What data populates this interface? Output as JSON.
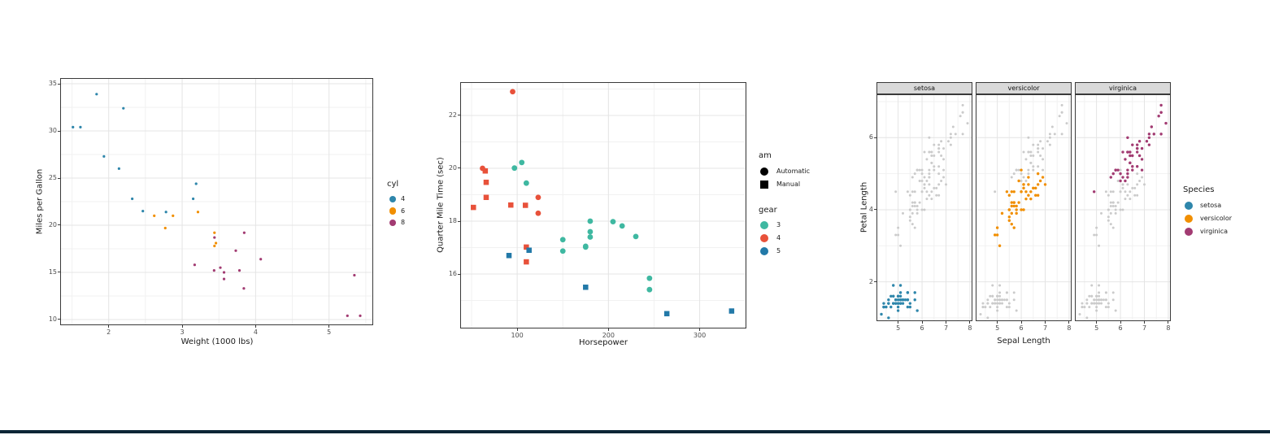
{
  "page": {
    "background": "#FFFFFF",
    "bottom_bar_color": "#0C2636"
  },
  "chart_style": {
    "grid_major": "#E4E4E4",
    "grid_minor": "#F1F1F1",
    "panel_border": "#3A3A3A",
    "panel_bg": "#FFFFFF",
    "tick_text": "#4D4D4D",
    "title_text": "#1A1A1A",
    "strip_bg": "#D9D9D9",
    "background_points": "#CBCBCB"
  },
  "chart_data": [
    {
      "id": "mpg-vs-weight",
      "type": "scatter",
      "title": "",
      "xlabel": "Weight (1000 lbs)",
      "ylabel": "Miles per Gallon",
      "xlim": [
        1.35,
        5.59
      ],
      "ylim": [
        9.48,
        35.52
      ],
      "xticks": [
        2,
        3,
        4,
        5
      ],
      "yticks": [
        10,
        15,
        20,
        25,
        30,
        35
      ],
      "grid": true,
      "legend_position": "right",
      "legends": [
        {
          "title": "cyl",
          "items": [
            {
              "label": "4",
              "color": "#2E86AB",
              "shape": "circle"
            },
            {
              "label": "6",
              "color": "#F18F01",
              "shape": "circle"
            },
            {
              "label": "8",
              "color": "#A23B72",
              "shape": "circle"
            }
          ]
        }
      ],
      "series": [
        {
          "name": "cyl-4",
          "color": "#2E86AB",
          "shape": "circle",
          "points": [
            [
              2.32,
              22.8
            ],
            [
              3.19,
              24.4
            ],
            [
              3.15,
              22.8
            ],
            [
              2.2,
              32.4
            ],
            [
              1.615,
              30.4
            ],
            [
              1.835,
              33.9
            ],
            [
              2.465,
              21.5
            ],
            [
              1.935,
              27.3
            ],
            [
              2.14,
              26.0
            ],
            [
              1.513,
              30.4
            ],
            [
              2.78,
              21.4
            ]
          ]
        },
        {
          "name": "cyl-6",
          "color": "#F18F01",
          "shape": "circle",
          "points": [
            [
              2.62,
              21.0
            ],
            [
              2.875,
              21.0
            ],
            [
              3.215,
              21.4
            ],
            [
              3.46,
              18.1
            ],
            [
              3.44,
              19.2
            ],
            [
              3.44,
              17.8
            ],
            [
              2.77,
              19.7
            ]
          ]
        },
        {
          "name": "cyl-8",
          "color": "#A23B72",
          "shape": "circle",
          "points": [
            [
              3.44,
              18.7
            ],
            [
              3.57,
              14.3
            ],
            [
              4.07,
              16.4
            ],
            [
              3.73,
              17.3
            ],
            [
              3.78,
              15.2
            ],
            [
              5.25,
              10.4
            ],
            [
              5.424,
              10.4
            ],
            [
              5.345,
              14.7
            ],
            [
              3.52,
              15.5
            ],
            [
              3.435,
              15.2
            ],
            [
              3.84,
              13.3
            ],
            [
              3.845,
              19.2
            ],
            [
              3.17,
              15.8
            ],
            [
              3.57,
              15.0
            ]
          ]
        }
      ]
    },
    {
      "id": "qsec-vs-hp",
      "type": "scatter",
      "title": "",
      "xlabel": "Horsepower",
      "ylabel": "Quarter Mile Time (sec)",
      "xlim": [
        38.4,
        350.3
      ],
      "ylim": [
        13.97,
        23.23
      ],
      "xticks": [
        100,
        200,
        300
      ],
      "yticks": [
        16,
        18,
        20,
        22
      ],
      "grid": true,
      "legend_position": "right",
      "legends": [
        {
          "title": "am",
          "items": [
            {
              "label": "Automatic",
              "color": "#000000",
              "shape": "circle"
            },
            {
              "label": "Manual",
              "color": "#000000",
              "shape": "square"
            }
          ]
        },
        {
          "title": "gear",
          "items": [
            {
              "label": "3",
              "color": "#3FB8A1",
              "shape": "circle"
            },
            {
              "label": "4",
              "color": "#E8513A",
              "shape": "circle"
            },
            {
              "label": "5",
              "color": "#2279A8",
              "shape": "circle"
            }
          ]
        }
      ],
      "series": [
        {
          "name": "gear-3-automatic",
          "color": "#3FB8A1",
          "shape": "circle",
          "points": [
            [
              110,
              19.44
            ],
            [
              175,
              17.02
            ],
            [
              105,
              20.22
            ],
            [
              245,
              15.84
            ],
            [
              180,
              17.4
            ],
            [
              180,
              17.6
            ],
            [
              180,
              18.0
            ],
            [
              205,
              17.98
            ],
            [
              215,
              17.82
            ],
            [
              230,
              17.42
            ],
            [
              97,
              20.01
            ],
            [
              150,
              16.87
            ],
            [
              150,
              17.3
            ],
            [
              245,
              15.41
            ],
            [
              175,
              17.05
            ]
          ]
        },
        {
          "name": "gear-4-automatic",
          "color": "#E8513A",
          "shape": "circle",
          "points": [
            [
              62,
              20.0
            ],
            [
              95,
              22.9
            ],
            [
              123,
              18.3
            ],
            [
              123,
              18.9
            ]
          ]
        },
        {
          "name": "gear-4-manual",
          "color": "#E8513A",
          "shape": "square",
          "points": [
            [
              110,
              16.46
            ],
            [
              110,
              17.02
            ],
            [
              93,
              18.61
            ],
            [
              66,
              19.47
            ],
            [
              52,
              18.52
            ],
            [
              65,
              19.9
            ],
            [
              66,
              18.9
            ],
            [
              109,
              18.6
            ]
          ]
        },
        {
          "name": "gear-5-manual",
          "color": "#2279A8",
          "shape": "square",
          "points": [
            [
              91,
              16.7
            ],
            [
              113,
              16.9
            ],
            [
              264,
              14.5
            ],
            [
              175,
              15.5
            ],
            [
              335,
              14.6
            ]
          ]
        }
      ]
    },
    {
      "id": "iris-facets",
      "type": "scatter",
      "faceted": true,
      "title": "",
      "xlabel": "Sepal Length",
      "ylabel": "Petal Length",
      "facet_labels": [
        "setosa",
        "versicolor",
        "virginica"
      ],
      "xlim": [
        4.13,
        8.07
      ],
      "ylim": [
        0.93,
        7.18
      ],
      "xticks": [
        5,
        6,
        7,
        8
      ],
      "yticks": [
        2,
        4,
        6
      ],
      "grid": true,
      "legend_position": "right",
      "legends": [
        {
          "title": "Species",
          "items": [
            {
              "label": "setosa",
              "color": "#2E86AB",
              "shape": "circle"
            },
            {
              "label": "versicolor",
              "color": "#F18F01",
              "shape": "circle"
            },
            {
              "label": "virginica",
              "color": "#A23B72",
              "shape": "circle"
            }
          ]
        }
      ],
      "facets": [
        {
          "label": "setosa",
          "color": "#2E86AB",
          "points": [
            [
              5.1,
              1.4
            ],
            [
              4.9,
              1.4
            ],
            [
              4.7,
              1.3
            ],
            [
              4.6,
              1.5
            ],
            [
              5.0,
              1.4
            ],
            [
              5.4,
              1.7
            ],
            [
              4.6,
              1.4
            ],
            [
              5.0,
              1.5
            ],
            [
              4.4,
              1.4
            ],
            [
              4.9,
              1.5
            ],
            [
              5.4,
              1.5
            ],
            [
              4.8,
              1.6
            ],
            [
              4.8,
              1.4
            ],
            [
              4.3,
              1.1
            ],
            [
              5.8,
              1.2
            ],
            [
              5.7,
              1.5
            ],
            [
              5.4,
              1.3
            ],
            [
              5.1,
              1.4
            ],
            [
              5.7,
              1.7
            ],
            [
              5.1,
              1.5
            ],
            [
              5.4,
              1.7
            ],
            [
              5.1,
              1.5
            ],
            [
              4.6,
              1.0
            ],
            [
              5.1,
              1.7
            ],
            [
              4.8,
              1.9
            ],
            [
              5.0,
              1.6
            ],
            [
              5.0,
              1.6
            ],
            [
              5.2,
              1.5
            ],
            [
              5.2,
              1.4
            ],
            [
              4.7,
              1.6
            ],
            [
              4.8,
              1.6
            ],
            [
              5.4,
              1.5
            ],
            [
              5.2,
              1.5
            ],
            [
              5.5,
              1.4
            ],
            [
              4.9,
              1.5
            ],
            [
              5.0,
              1.2
            ],
            [
              5.5,
              1.3
            ],
            [
              4.9,
              1.4
            ],
            [
              4.4,
              1.3
            ],
            [
              5.1,
              1.5
            ],
            [
              5.0,
              1.3
            ],
            [
              4.5,
              1.3
            ],
            [
              4.4,
              1.3
            ],
            [
              5.0,
              1.6
            ],
            [
              5.1,
              1.9
            ],
            [
              4.8,
              1.4
            ],
            [
              5.1,
              1.6
            ],
            [
              4.6,
              1.4
            ],
            [
              5.3,
              1.5
            ],
            [
              5.0,
              1.4
            ]
          ]
        },
        {
          "label": "versicolor",
          "color": "#F18F01",
          "points": [
            [
              7.0,
              4.7
            ],
            [
              6.4,
              4.5
            ],
            [
              6.9,
              4.9
            ],
            [
              5.5,
              4.0
            ],
            [
              6.5,
              4.6
            ],
            [
              5.7,
              4.5
            ],
            [
              6.3,
              4.7
            ],
            [
              4.9,
              3.3
            ],
            [
              6.6,
              4.6
            ],
            [
              5.2,
              3.9
            ],
            [
              5.0,
              3.5
            ],
            [
              5.9,
              4.2
            ],
            [
              6.0,
              4.0
            ],
            [
              6.1,
              4.7
            ],
            [
              5.6,
              3.6
            ],
            [
              6.7,
              4.4
            ],
            [
              5.6,
              4.5
            ],
            [
              5.8,
              4.1
            ],
            [
              6.2,
              4.5
            ],
            [
              5.6,
              3.9
            ],
            [
              5.9,
              4.8
            ],
            [
              6.1,
              4.0
            ],
            [
              6.3,
              4.9
            ],
            [
              6.1,
              4.7
            ],
            [
              6.4,
              4.3
            ],
            [
              6.6,
              4.4
            ],
            [
              6.8,
              4.8
            ],
            [
              6.7,
              5.0
            ],
            [
              6.0,
              4.5
            ],
            [
              5.7,
              3.5
            ],
            [
              5.5,
              3.8
            ],
            [
              5.5,
              3.7
            ],
            [
              5.8,
              3.9
            ],
            [
              6.0,
              5.1
            ],
            [
              5.4,
              4.5
            ],
            [
              6.0,
              4.5
            ],
            [
              6.7,
              4.7
            ],
            [
              6.3,
              4.4
            ],
            [
              5.6,
              4.1
            ],
            [
              5.5,
              4.0
            ],
            [
              5.5,
              4.4
            ],
            [
              6.1,
              4.6
            ],
            [
              5.8,
              4.0
            ],
            [
              5.0,
              3.3
            ],
            [
              5.6,
              4.2
            ],
            [
              5.7,
              4.2
            ],
            [
              5.7,
              4.2
            ],
            [
              6.2,
              4.3
            ],
            [
              5.1,
              3.0
            ],
            [
              5.7,
              4.1
            ]
          ]
        },
        {
          "label": "virginica",
          "color": "#A23B72",
          "points": [
            [
              6.3,
              6.0
            ],
            [
              5.8,
              5.1
            ],
            [
              7.1,
              5.9
            ],
            [
              6.3,
              5.6
            ],
            [
              6.5,
              5.8
            ],
            [
              7.6,
              6.6
            ],
            [
              4.9,
              4.5
            ],
            [
              7.3,
              6.3
            ],
            [
              6.7,
              5.8
            ],
            [
              7.2,
              6.1
            ],
            [
              6.5,
              5.1
            ],
            [
              6.4,
              5.3
            ],
            [
              6.8,
              5.5
            ],
            [
              5.7,
              5.0
            ],
            [
              5.8,
              5.1
            ],
            [
              6.4,
              5.3
            ],
            [
              6.5,
              5.5
            ],
            [
              7.7,
              6.7
            ],
            [
              7.7,
              6.9
            ],
            [
              6.0,
              5.0
            ],
            [
              6.9,
              5.7
            ],
            [
              5.6,
              4.9
            ],
            [
              7.7,
              6.7
            ],
            [
              6.3,
              4.9
            ],
            [
              6.7,
              5.7
            ],
            [
              7.2,
              6.0
            ],
            [
              6.2,
              4.8
            ],
            [
              6.1,
              4.9
            ],
            [
              6.4,
              5.6
            ],
            [
              7.2,
              5.8
            ],
            [
              7.4,
              6.1
            ],
            [
              7.9,
              6.4
            ],
            [
              6.4,
              5.6
            ],
            [
              6.3,
              5.1
            ],
            [
              6.1,
              5.6
            ],
            [
              7.7,
              6.1
            ],
            [
              6.3,
              5.6
            ],
            [
              6.4,
              5.5
            ],
            [
              6.0,
              4.8
            ],
            [
              6.9,
              5.4
            ],
            [
              6.7,
              5.6
            ],
            [
              6.9,
              5.1
            ],
            [
              5.8,
              5.1
            ],
            [
              6.8,
              5.9
            ],
            [
              6.7,
              5.7
            ],
            [
              6.7,
              5.2
            ],
            [
              6.3,
              5.0
            ],
            [
              6.5,
              5.2
            ],
            [
              6.2,
              5.4
            ],
            [
              5.9,
              5.1
            ]
          ]
        }
      ]
    }
  ]
}
